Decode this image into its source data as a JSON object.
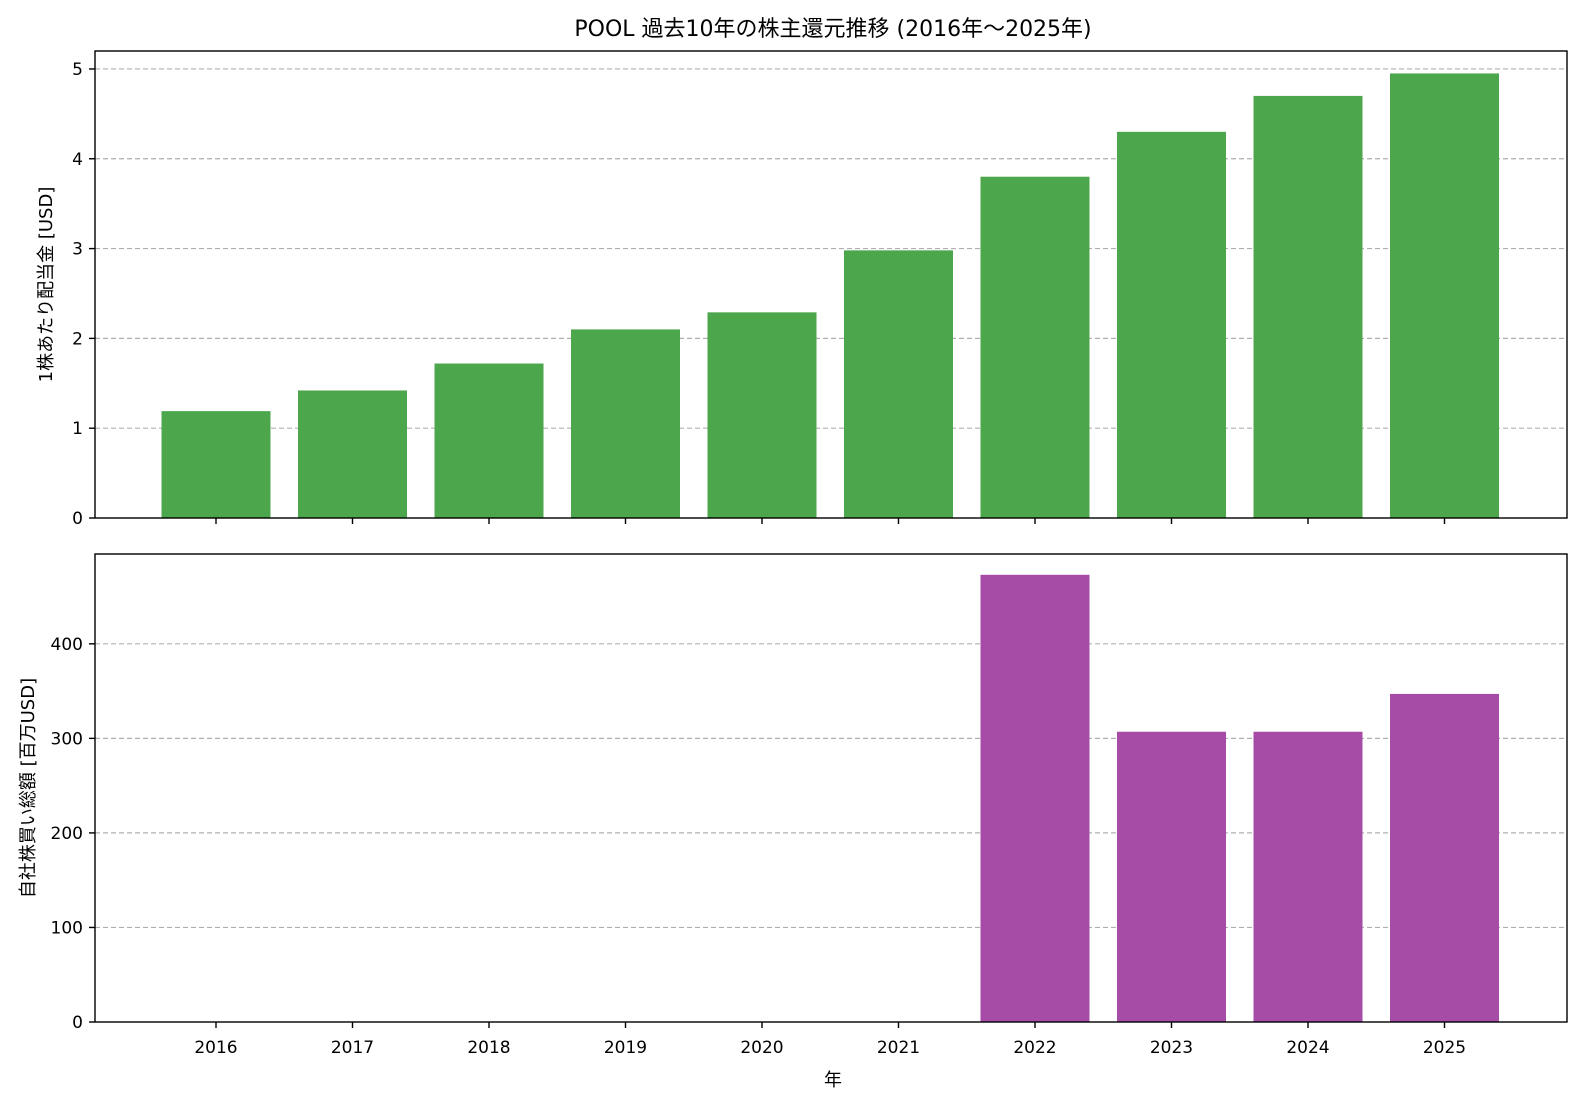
{
  "chart_data": {
    "type": "bar",
    "title": "POOL 過去10年の株主還元推移 (2016年～2025年)",
    "xlabel": "年",
    "categories": [
      "2016",
      "2017",
      "2018",
      "2019",
      "2020",
      "2021",
      "2022",
      "2023",
      "2024",
      "2025"
    ],
    "grid": "y",
    "panels": [
      {
        "ylabel": "1株あたり配当金 [USD]",
        "ylim": [
          0,
          5.2
        ],
        "yticks": [
          0,
          1,
          2,
          3,
          4,
          5
        ],
        "ytick_labels": [
          "0",
          "1",
          "2",
          "3",
          "4",
          "5"
        ],
        "color": "#4ca64c",
        "values": [
          1.19,
          1.42,
          1.72,
          2.1,
          2.29,
          2.98,
          3.8,
          4.3,
          4.7,
          4.95
        ]
      },
      {
        "ylabel": "自社株買い総額 [百万USD]",
        "ylim": [
          0,
          495
        ],
        "yticks": [
          0,
          100,
          200,
          300,
          400
        ],
        "ytick_labels": [
          "0",
          "100",
          "200",
          "300",
          "400"
        ],
        "color": "#a64ca6",
        "values": [
          0,
          0,
          0,
          0,
          0,
          0,
          473,
          307,
          307,
          347
        ]
      }
    ]
  }
}
